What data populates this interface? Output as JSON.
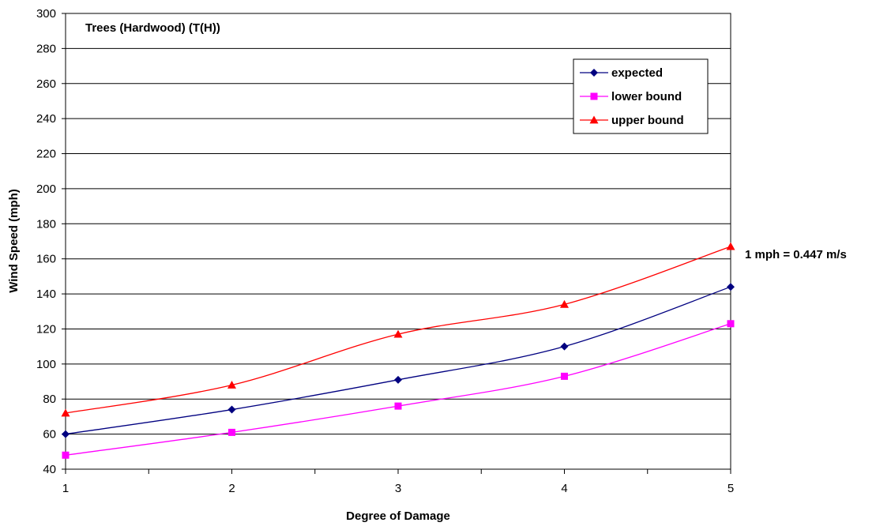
{
  "chart_data": {
    "type": "line",
    "title": "Trees (Hardwood) (T(H))",
    "xlabel": "Degree of Damage",
    "ylabel": "Wind Speed (mph)",
    "x": [
      1,
      2,
      3,
      4,
      5
    ],
    "xlim": [
      1,
      5
    ],
    "ylim": [
      40,
      300
    ],
    "x_ticks": [
      "1",
      "2",
      "3",
      "4",
      "5"
    ],
    "y_ticks": [
      "40",
      "60",
      "80",
      "100",
      "120",
      "140",
      "160",
      "180",
      "200",
      "220",
      "240",
      "260",
      "280",
      "300"
    ],
    "grid": "horizontal",
    "legend_position": "top-right",
    "annotation": "1 mph = 0.447 m/s",
    "series": [
      {
        "name": "expected",
        "values": [
          60,
          74,
          91,
          110,
          144
        ],
        "color": "#000080",
        "marker": "diamond"
      },
      {
        "name": "lower bound",
        "values": [
          48,
          61,
          76,
          93,
          123
        ],
        "color": "#ff00ff",
        "marker": "square"
      },
      {
        "name": "upper bound",
        "values": [
          72,
          88,
          117,
          134,
          167
        ],
        "color": "#ff0000",
        "marker": "triangle"
      }
    ]
  }
}
